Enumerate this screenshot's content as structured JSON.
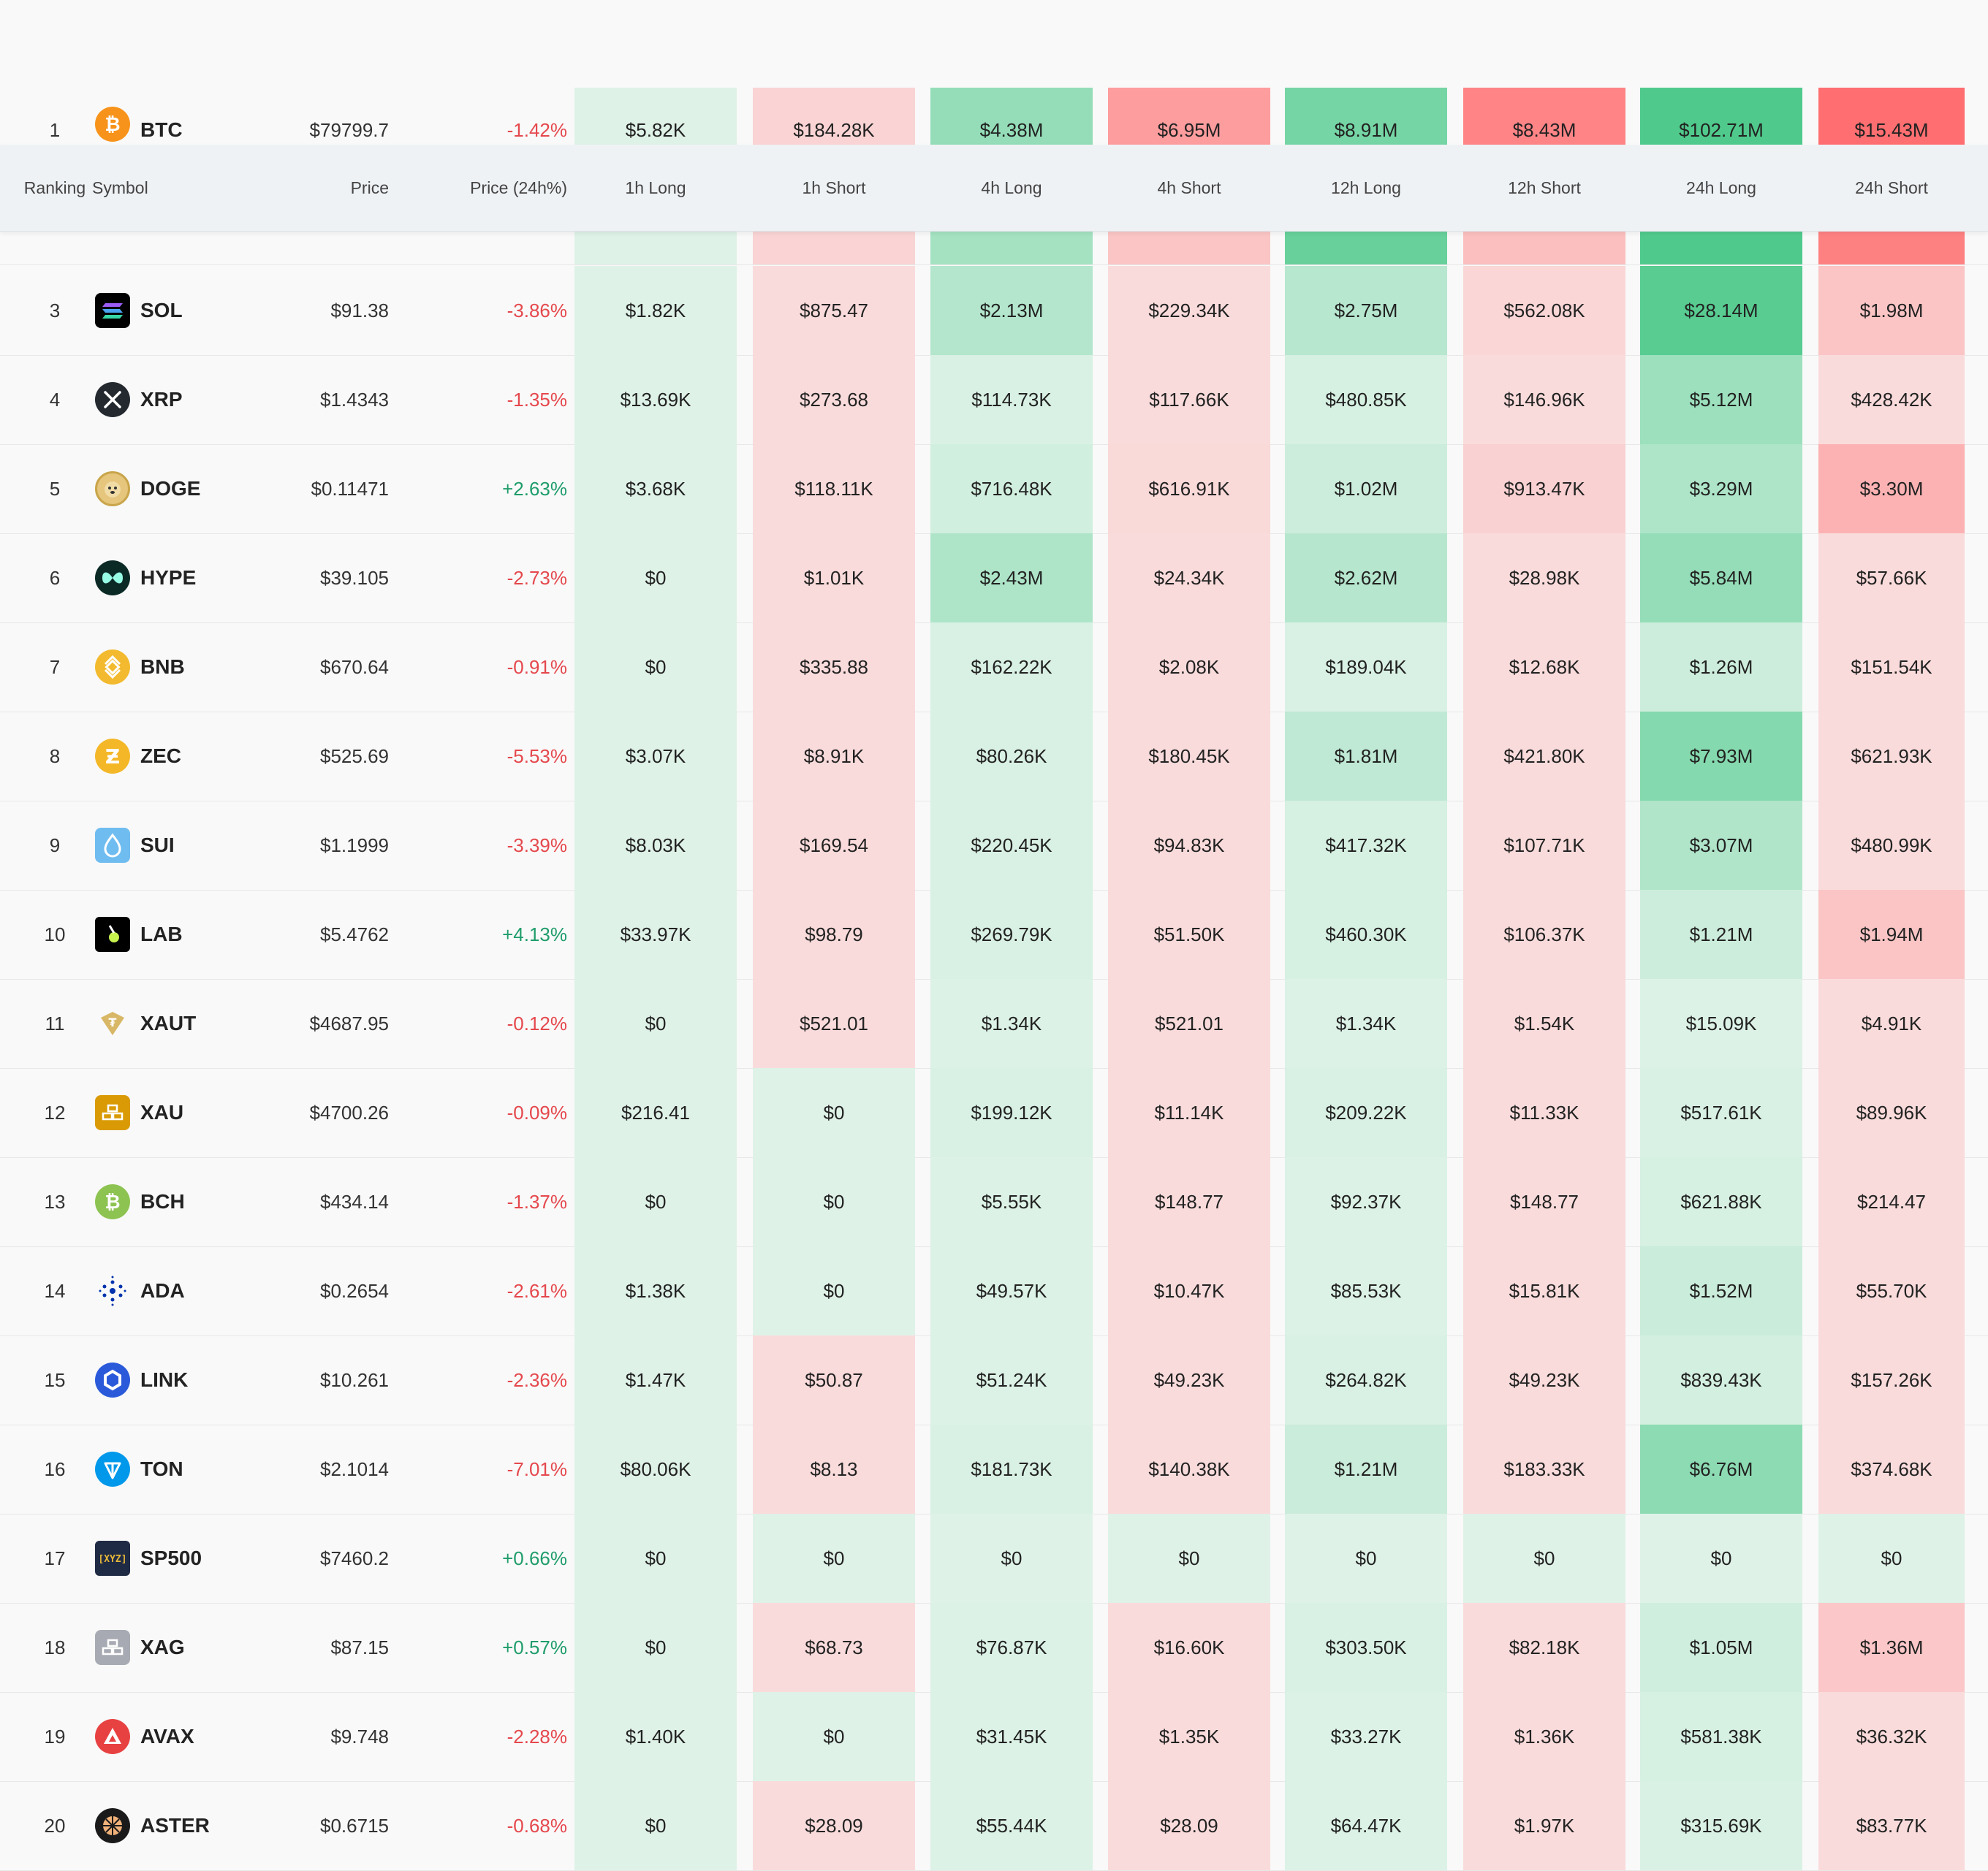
{
  "headers": {
    "ranking": "Ranking",
    "symbol": "Symbol",
    "price": "Price",
    "change": "Price (24h%)",
    "cols": [
      "1h Long",
      "1h Short",
      "4h Long",
      "4h Short",
      "12h Long",
      "12h Short",
      "24h Long",
      "24h Short"
    ]
  },
  "rows": [
    {
      "rank": "1",
      "symbol": "BTC",
      "icon": "bitcoin-icon",
      "price": "$79799.7",
      "change": "-1.42%",
      "values": [
        "$5.82K",
        "$184.28K",
        "$4.38M",
        "$6.95M",
        "$8.91M",
        "$8.43M",
        "$102.71M",
        "$15.43M"
      ],
      "levels": [
        0.06,
        0.18,
        0.55,
        0.62,
        0.75,
        0.82,
        1.0,
        1.0
      ]
    },
    {
      "rank": "3",
      "symbol": "SOL",
      "icon": "solana-icon",
      "price": "$91.38",
      "change": "-3.86%",
      "values": [
        "$1.82K",
        "$875.47",
        "$2.13M",
        "$229.34K",
        "$2.75M",
        "$562.08K",
        "$28.14M",
        "$1.98M"
      ],
      "levels": [
        0.06,
        0.12,
        0.35,
        0.12,
        0.32,
        0.16,
        0.95,
        0.3
      ]
    },
    {
      "rank": "4",
      "symbol": "XRP",
      "icon": "xrp-icon",
      "price": "$1.4343",
      "change": "-1.35%",
      "values": [
        "$13.69K",
        "$273.68",
        "$114.73K",
        "$117.66K",
        "$480.85K",
        "$146.96K",
        "$5.12M",
        "$428.42K"
      ],
      "levels": [
        0.06,
        0.12,
        0.1,
        0.12,
        0.12,
        0.12,
        0.5,
        0.12
      ]
    },
    {
      "rank": "5",
      "symbol": "DOGE",
      "icon": "doge-icon",
      "price": "$0.11471",
      "change": "+2.63%",
      "values": [
        "$3.68K",
        "$118.11K",
        "$716.48K",
        "$616.91K",
        "$1.02M",
        "$913.47K",
        "$3.29M",
        "$3.30M"
      ],
      "levels": [
        0.06,
        0.12,
        0.15,
        0.14,
        0.18,
        0.2,
        0.38,
        0.45
      ]
    },
    {
      "rank": "6",
      "symbol": "HYPE",
      "icon": "hyperliquid-icon",
      "price": "$39.105",
      "change": "-2.73%",
      "values": [
        "$0",
        "$1.01K",
        "$2.43M",
        "$24.34K",
        "$2.62M",
        "$28.98K",
        "$5.84M",
        "$57.66K"
      ],
      "levels": [
        0.06,
        0.12,
        0.38,
        0.12,
        0.33,
        0.12,
        0.55,
        0.12
      ]
    },
    {
      "rank": "7",
      "symbol": "BNB",
      "icon": "bnb-icon",
      "price": "$670.64",
      "change": "-0.91%",
      "values": [
        "$0",
        "$335.88",
        "$162.22K",
        "$2.08K",
        "$189.04K",
        "$12.68K",
        "$1.26M",
        "$151.54K"
      ],
      "levels": [
        0.06,
        0.12,
        0.1,
        0.12,
        0.1,
        0.12,
        0.18,
        0.12
      ]
    },
    {
      "rank": "8",
      "symbol": "ZEC",
      "icon": "zcash-icon",
      "price": "$525.69",
      "change": "-5.53%",
      "values": [
        "$3.07K",
        "$8.91K",
        "$80.26K",
        "$180.45K",
        "$1.81M",
        "$421.80K",
        "$7.93M",
        "$621.93K"
      ],
      "levels": [
        0.06,
        0.12,
        0.1,
        0.12,
        0.27,
        0.12,
        0.65,
        0.12
      ]
    },
    {
      "rank": "9",
      "symbol": "SUI",
      "icon": "sui-icon",
      "price": "$1.1999",
      "change": "-3.39%",
      "values": [
        "$8.03K",
        "$169.54",
        "$220.45K",
        "$94.83K",
        "$417.32K",
        "$107.71K",
        "$3.07M",
        "$480.99K"
      ],
      "levels": [
        0.06,
        0.12,
        0.1,
        0.12,
        0.12,
        0.12,
        0.37,
        0.12
      ]
    },
    {
      "rank": "10",
      "symbol": "LAB",
      "icon": "lab-icon",
      "price": "$5.4762",
      "change": "+4.13%",
      "values": [
        "$33.97K",
        "$98.79",
        "$269.79K",
        "$51.50K",
        "$460.30K",
        "$106.37K",
        "$1.21M",
        "$1.94M"
      ],
      "levels": [
        0.06,
        0.12,
        0.1,
        0.12,
        0.12,
        0.12,
        0.18,
        0.3
      ]
    },
    {
      "rank": "11",
      "symbol": "XAUT",
      "icon": "tether-gold-icon",
      "price": "$4687.95",
      "change": "-0.12%",
      "values": [
        "$0",
        "$521.01",
        "$1.34K",
        "$521.01",
        "$1.34K",
        "$1.54K",
        "$15.09K",
        "$4.91K"
      ],
      "levels": [
        0.06,
        0.12,
        0.08,
        0.12,
        0.08,
        0.12,
        0.08,
        0.12
      ]
    },
    {
      "rank": "12",
      "symbol": "XAU",
      "icon": "gold-bars-icon",
      "price": "$4700.26",
      "change": "-0.09%",
      "values": [
        "$216.41",
        "$0",
        "$199.12K",
        "$11.14K",
        "$209.22K",
        "$11.33K",
        "$517.61K",
        "$89.96K"
      ],
      "levels": [
        0.06,
        -1,
        0.1,
        0.12,
        0.1,
        0.12,
        0.1,
        0.12
      ]
    },
    {
      "rank": "13",
      "symbol": "BCH",
      "icon": "bitcoin-cash-icon",
      "price": "$434.14",
      "change": "-1.37%",
      "values": [
        "$0",
        "$0",
        "$5.55K",
        "$148.77",
        "$92.37K",
        "$148.77",
        "$621.88K",
        "$214.47"
      ],
      "levels": [
        0.06,
        -1,
        0.08,
        0.12,
        0.08,
        0.12,
        0.12,
        0.12
      ]
    },
    {
      "rank": "14",
      "symbol": "ADA",
      "icon": "cardano-icon",
      "price": "$0.2654",
      "change": "-2.61%",
      "values": [
        "$1.38K",
        "$0",
        "$49.57K",
        "$10.47K",
        "$85.53K",
        "$15.81K",
        "$1.52M",
        "$55.70K"
      ],
      "levels": [
        0.06,
        -1,
        0.08,
        0.12,
        0.08,
        0.12,
        0.2,
        0.12
      ]
    },
    {
      "rank": "15",
      "symbol": "LINK",
      "icon": "chainlink-icon",
      "price": "$10.261",
      "change": "-2.36%",
      "values": [
        "$1.47K",
        "$50.87",
        "$51.24K",
        "$49.23K",
        "$264.82K",
        "$49.23K",
        "$839.43K",
        "$157.26K"
      ],
      "levels": [
        0.06,
        0.12,
        0.08,
        0.12,
        0.1,
        0.12,
        0.14,
        0.12
      ]
    },
    {
      "rank": "16",
      "symbol": "TON",
      "icon": "toncoin-icon",
      "price": "$2.1014",
      "change": "-7.01%",
      "values": [
        "$80.06K",
        "$8.13",
        "$181.73K",
        "$140.38K",
        "$1.21M",
        "$183.33K",
        "$6.76M",
        "$374.68K"
      ],
      "levels": [
        0.06,
        0.12,
        0.1,
        0.12,
        0.2,
        0.12,
        0.6,
        0.12
      ]
    },
    {
      "rank": "17",
      "symbol": "SP500",
      "icon": "xyz-icon",
      "price": "$7460.2",
      "change": "+0.66%",
      "values": [
        "$0",
        "$0",
        "$0",
        "$0",
        "$0",
        "$0",
        "$0",
        "$0"
      ],
      "levels": [
        0.06,
        -1,
        0.06,
        -1,
        0.06,
        -1,
        0.06,
        -1
      ]
    },
    {
      "rank": "18",
      "symbol": "XAG",
      "icon": "silver-bars-icon",
      "price": "$87.15",
      "change": "+0.57%",
      "values": [
        "$0",
        "$68.73",
        "$76.87K",
        "$16.60K",
        "$303.50K",
        "$82.18K",
        "$1.05M",
        "$1.36M"
      ],
      "levels": [
        0.06,
        0.12,
        0.08,
        0.12,
        0.1,
        0.12,
        0.16,
        0.28
      ]
    },
    {
      "rank": "19",
      "symbol": "AVAX",
      "icon": "avalanche-icon",
      "price": "$9.748",
      "change": "-2.28%",
      "values": [
        "$1.40K",
        "$0",
        "$31.45K",
        "$1.35K",
        "$33.27K",
        "$1.36K",
        "$581.38K",
        "$36.32K"
      ],
      "levels": [
        0.06,
        -1,
        0.08,
        0.12,
        0.08,
        0.12,
        0.12,
        0.12
      ]
    },
    {
      "rank": "20",
      "symbol": "ASTER",
      "icon": "aster-icon",
      "price": "$0.6715",
      "change": "-0.68%",
      "values": [
        "$0",
        "$28.09",
        "$55.44K",
        "$28.09",
        "$64.47K",
        "$1.97K",
        "$315.69K",
        "$83.77K"
      ],
      "levels": [
        0.06,
        0.12,
        0.08,
        0.12,
        0.08,
        0.12,
        0.1,
        0.12
      ]
    }
  ],
  "peek_levels": [
    0.06,
    0.18,
    0.45,
    0.3,
    0.85,
    0.35,
    1.0,
    0.85
  ]
}
